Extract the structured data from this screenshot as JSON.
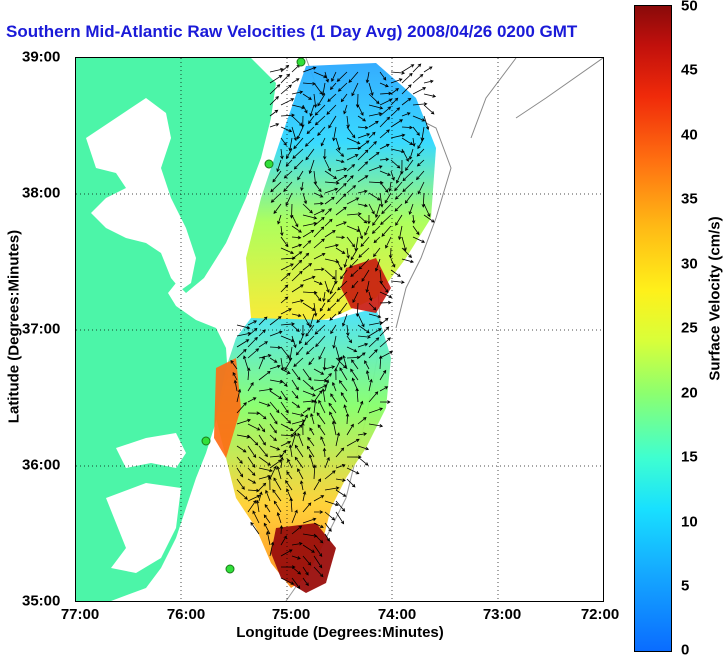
{
  "title": "Southern Mid-Atlantic Raw Velocities (1 Day Avg) 2008/04/26 0200 GMT",
  "axes": {
    "x_label": "Longitude (Degrees:Minutes)",
    "y_label": "Latitude (Degrees:Minutes)",
    "x_ticks": [
      "77:00",
      "76:00",
      "75:00",
      "74:00",
      "73:00",
      "72:00"
    ],
    "y_ticks": [
      "39:00",
      "38:00",
      "37:00",
      "36:00",
      "35:00"
    ]
  },
  "colorbar": {
    "label": "Surface Velocity (cm/s)",
    "ticks": [
      "50",
      "45",
      "40",
      "35",
      "30",
      "25",
      "20",
      "15",
      "10",
      "5",
      "0"
    ],
    "min": 0,
    "max": 50
  },
  "colors": {
    "land": "#4cf5a8",
    "title_text": "#1a1ad8"
  },
  "map": {
    "lon_range": [
      -77,
      -72
    ],
    "lat_range": [
      35,
      39
    ]
  }
}
